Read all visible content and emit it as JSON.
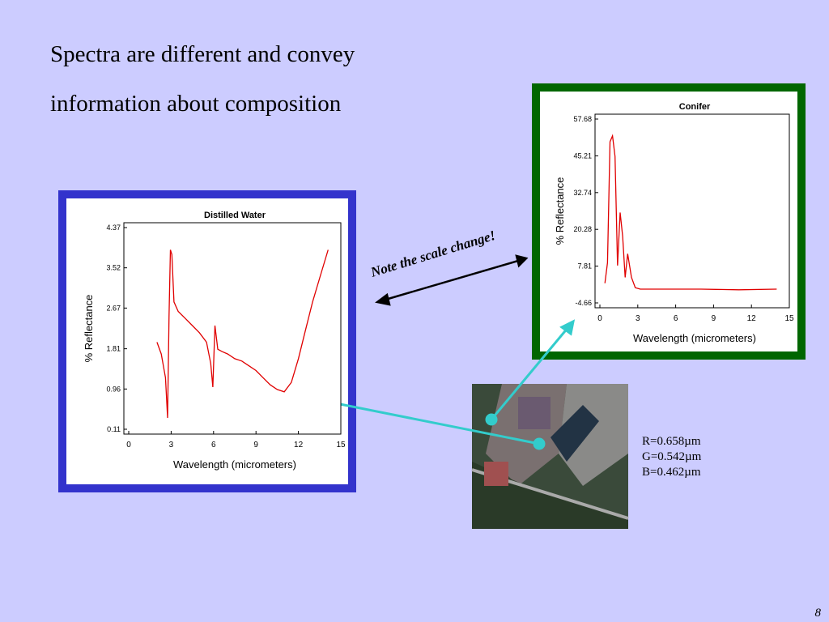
{
  "slide_title": [
    "Spectra are different and convey",
    "information about composition"
  ],
  "note": "Note the scale change!",
  "bands": [
    "R=0.658µm",
    "G=0.542µm",
    "B=0.462µm"
  ],
  "page_number": "8",
  "chart_data": [
    {
      "type": "line",
      "title": "Distilled Water",
      "x_label": "Wavelength (micrometers)",
      "y_label": "% Reflectance",
      "x": [
        2.0,
        2.3,
        2.6,
        2.75,
        2.85,
        2.95,
        3.05,
        3.2,
        3.5,
        4.0,
        4.5,
        5.0,
        5.5,
        5.8,
        5.95,
        6.1,
        6.3,
        6.6,
        7.0,
        7.5,
        8.0,
        8.5,
        9.0,
        9.5,
        10.0,
        10.5,
        11.0,
        11.5,
        12.0,
        12.5,
        13.0,
        13.5,
        14.1
      ],
      "values": [
        1.95,
        1.7,
        1.2,
        0.35,
        2.5,
        3.9,
        3.8,
        2.8,
        2.6,
        2.45,
        2.3,
        2.15,
        1.95,
        1.5,
        1.0,
        2.3,
        1.8,
        1.75,
        1.7,
        1.6,
        1.55,
        1.45,
        1.35,
        1.2,
        1.05,
        0.95,
        0.9,
        1.1,
        1.6,
        2.2,
        2.8,
        3.3,
        3.9
      ],
      "color": "#e00000",
      "xlim": [
        0,
        15
      ],
      "xticks": [
        0,
        3,
        6,
        9,
        12,
        15
      ],
      "ylim": [
        0.11,
        4.37
      ],
      "yticks": [
        0.11,
        0.96,
        1.81,
        2.67,
        3.52,
        4.37
      ]
    },
    {
      "type": "line",
      "title": "Conifer",
      "x_label": "Wavelength (micrometers)",
      "y_label": "% Reflectance",
      "x": [
        0.4,
        0.6,
        0.8,
        1.0,
        1.2,
        1.4,
        1.6,
        1.8,
        2.0,
        2.2,
        2.5,
        2.8,
        3.2,
        5,
        8,
        11,
        14
      ],
      "values": [
        2,
        9,
        50,
        52,
        45,
        8,
        26,
        18,
        4,
        12,
        4,
        0.5,
        0,
        0,
        0,
        -0.2,
        0
      ],
      "color": "#e00000",
      "xlim": [
        0,
        15
      ],
      "xticks": [
        0,
        3,
        6,
        9,
        12,
        15
      ],
      "ylim": [
        -4.66,
        57.68
      ],
      "yticks": [
        -4.66,
        7.81,
        20.28,
        32.74,
        45.21,
        57.68
      ]
    }
  ]
}
